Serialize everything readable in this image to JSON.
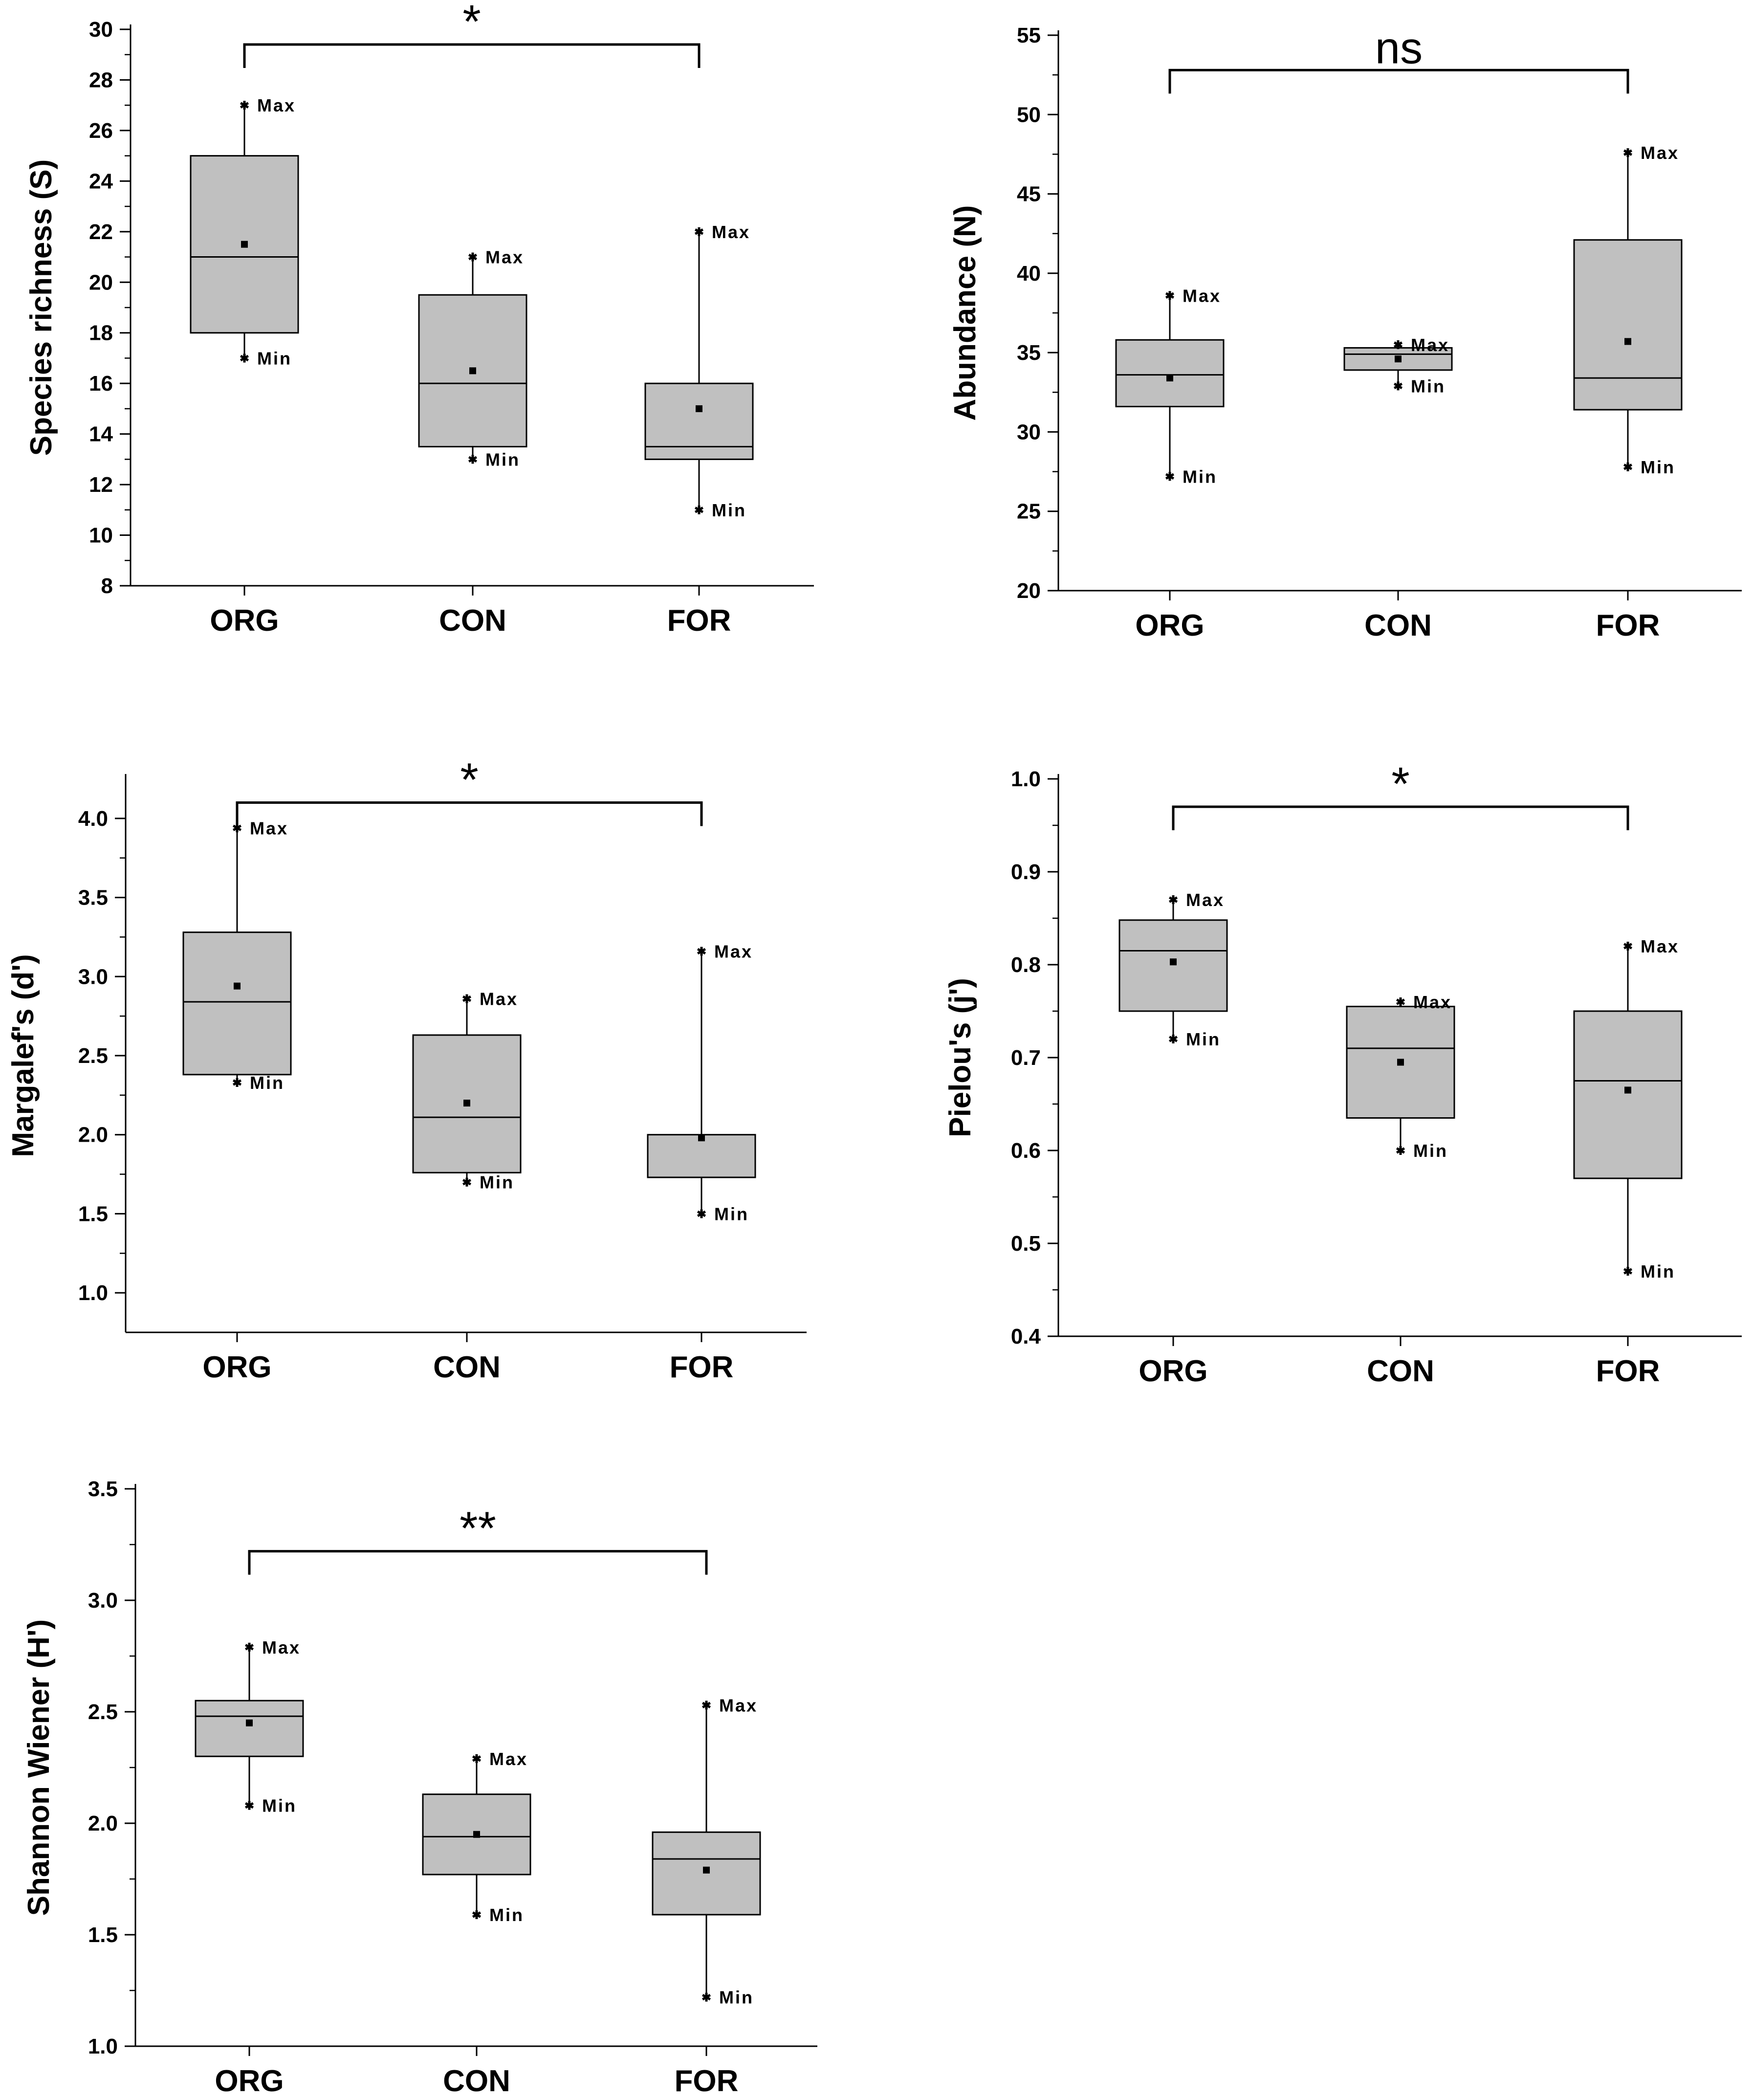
{
  "chart_data": [
    {
      "type": "box",
      "ylabel": "Species richness (S)",
      "ylim": [
        8,
        30
      ],
      "yticks": [
        8,
        10,
        12,
        14,
        16,
        18,
        20,
        22,
        24,
        26,
        28,
        30
      ],
      "categories": [
        "ORG",
        "CON",
        "FOR"
      ],
      "boxes": [
        {
          "category": "ORG",
          "min": 17,
          "q1": 18,
          "median": 21,
          "q3": 25,
          "max": 27,
          "mean": 21.5
        },
        {
          "category": "CON",
          "min": 13,
          "q1": 13.5,
          "median": 16,
          "q3": 19.5,
          "max": 21,
          "mean": 16.5
        },
        {
          "category": "FOR",
          "min": 11,
          "q1": 13,
          "median": 13.5,
          "q3": 16,
          "max": 22,
          "mean": 15
        }
      ],
      "extreme_labels": {
        "max": "Max",
        "min": "Min"
      },
      "significance": {
        "from": "ORG",
        "to": "FOR",
        "label": "*",
        "y": 29.4
      }
    },
    {
      "type": "box",
      "ylabel": "Abundance (N)",
      "ylim": [
        20,
        55
      ],
      "yticks": [
        20,
        25,
        30,
        35,
        40,
        45,
        50,
        55
      ],
      "categories": [
        "ORG",
        "CON",
        "FOR"
      ],
      "boxes": [
        {
          "category": "ORG",
          "min": 27.2,
          "q1": 31.6,
          "median": 33.6,
          "q3": 35.8,
          "max": 38.6,
          "mean": 33.4
        },
        {
          "category": "CON",
          "min": 32.9,
          "q1": 33.9,
          "median": 34.9,
          "q3": 35.3,
          "max": 35.5,
          "mean": 34.6
        },
        {
          "category": "FOR",
          "min": 27.8,
          "q1": 31.4,
          "median": 33.4,
          "q3": 42.1,
          "max": 47.6,
          "mean": 35.7
        }
      ],
      "extreme_labels": {
        "max": "Max",
        "min": "Min"
      },
      "significance": {
        "from": "ORG",
        "to": "FOR",
        "label": "ns",
        "y": 52.8
      }
    },
    {
      "type": "box",
      "ylabel": "Margalef's (d')",
      "ylim": [
        0.75,
        4.25
      ],
      "yticks": [
        1.0,
        1.5,
        2.0,
        2.5,
        3.0,
        3.5,
        4.0
      ],
      "categories": [
        "ORG",
        "CON",
        "FOR"
      ],
      "boxes": [
        {
          "category": "ORG",
          "min": 2.33,
          "q1": 2.38,
          "median": 2.84,
          "q3": 3.28,
          "max": 3.94,
          "mean": 2.94
        },
        {
          "category": "CON",
          "min": 1.7,
          "q1": 1.76,
          "median": 2.11,
          "q3": 2.63,
          "max": 2.86,
          "mean": 2.2
        },
        {
          "category": "FOR",
          "min": 1.5,
          "q1": 1.73,
          "median": 1.73,
          "q3": 2.0,
          "max": 3.16,
          "mean": 1.98
        }
      ],
      "extreme_labels": {
        "max": "Max",
        "min": "Min"
      },
      "significance": {
        "from": "ORG",
        "to": "FOR",
        "label": "*",
        "y": 4.1
      }
    },
    {
      "type": "box",
      "ylabel": "Pielou's (j')",
      "ylim": [
        0.4,
        1.0
      ],
      "yticks": [
        0.4,
        0.5,
        0.6,
        0.7,
        0.8,
        0.9,
        1.0
      ],
      "categories": [
        "ORG",
        "CON",
        "FOR"
      ],
      "boxes": [
        {
          "category": "ORG",
          "min": 0.72,
          "q1": 0.75,
          "median": 0.815,
          "q3": 0.848,
          "max": 0.87,
          "mean": 0.803
        },
        {
          "category": "CON",
          "min": 0.6,
          "q1": 0.635,
          "median": 0.71,
          "q3": 0.755,
          "max": 0.76,
          "mean": 0.695
        },
        {
          "category": "FOR",
          "min": 0.47,
          "q1": 0.57,
          "median": 0.675,
          "q3": 0.75,
          "max": 0.82,
          "mean": 0.665
        }
      ],
      "extreme_labels": {
        "max": "Max",
        "min": "Min"
      },
      "significance": {
        "from": "ORG",
        "to": "FOR",
        "label": "*",
        "y": 0.97
      }
    },
    {
      "type": "box",
      "ylabel": "Shannon Wiener (H')",
      "ylim": [
        1.0,
        3.5
      ],
      "yticks": [
        1.0,
        1.5,
        2.0,
        2.5,
        3.0,
        3.5
      ],
      "categories": [
        "ORG",
        "CON",
        "FOR"
      ],
      "boxes": [
        {
          "category": "ORG",
          "min": 2.08,
          "q1": 2.3,
          "median": 2.48,
          "q3": 2.55,
          "max": 2.79,
          "mean": 2.45
        },
        {
          "category": "CON",
          "min": 1.59,
          "q1": 1.77,
          "median": 1.94,
          "q3": 2.13,
          "max": 2.29,
          "mean": 1.95
        },
        {
          "category": "FOR",
          "min": 1.22,
          "q1": 1.59,
          "median": 1.84,
          "q3": 1.96,
          "max": 2.53,
          "mean": 1.79
        }
      ],
      "extreme_labels": {
        "max": "Max",
        "min": "Min"
      },
      "significance": {
        "from": "ORG",
        "to": "FOR",
        "label": "**",
        "y": 3.22
      }
    }
  ]
}
